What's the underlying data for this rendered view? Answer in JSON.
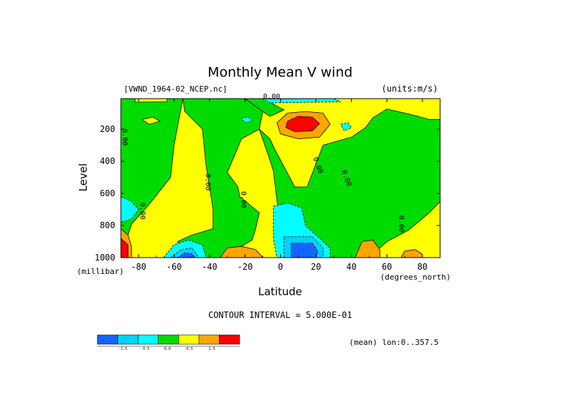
{
  "chart_data": {
    "type": "heatmap",
    "title": "Monthly Mean V wind",
    "dataset_label": "[VWND_1964-02_NCEP.nc]",
    "units_label": "(units:m/s)",
    "xlabel": "Latitude",
    "ylabel": "Level",
    "x_unit_label": "(degrees_north)",
    "y_unit_label": "(millibar)",
    "xlim": [
      -90,
      90
    ],
    "ylim": [
      1000,
      10
    ],
    "x_ticks": [
      -80,
      -60,
      -40,
      -20,
      0,
      20,
      40,
      60,
      80
    ],
    "x_tick_labels": [
      "-80",
      "-60",
      "-40",
      "-20",
      "0",
      "20",
      "40",
      "60",
      "80"
    ],
    "y_ticks": [
      200,
      400,
      600,
      800,
      1000
    ],
    "y_tick_labels": [
      "200",
      "400",
      "600",
      "800",
      "1000"
    ],
    "contour_interval_text": "CONTOUR INTERVAL = 5.000E-01",
    "mean_text": "(mean) lon:0..357.5",
    "contour_labels": [
      "0.00"
    ],
    "legend": {
      "colors": [
        "#1464ff",
        "#00d2ff",
        "#00ffff",
        "#00dc00",
        "#ffff00",
        "#ffa500",
        "#ff0000"
      ],
      "tick_labels": [
        "-1.5",
        "-0.5",
        "0.0",
        "0.5",
        "1.5"
      ]
    },
    "levels": {
      "neg2": "#1464ff",
      "neg1": "#00d2ff",
      "neg05": "#00ffff",
      "zero": "#00dc00",
      "pos": "#ffff00",
      "pos1": "#ffa500",
      "pos2": "#ff0000"
    },
    "regions": [
      {
        "name": "main-positive-field",
        "level": "pos",
        "poly": [
          [
            -90,
            1000
          ],
          [
            -90,
            10
          ],
          [
            90,
            10
          ],
          [
            90,
            1000
          ]
        ]
      },
      {
        "name": "high-lat-south-band",
        "level": "zero",
        "poly": [
          [
            -90,
            10
          ],
          [
            -55,
            10
          ],
          [
            -57,
            120
          ],
          [
            -60,
            300
          ],
          [
            -62,
            500
          ],
          [
            -72,
            640
          ],
          [
            -78,
            720
          ],
          [
            -84,
            790
          ],
          [
            -86,
            860
          ],
          [
            -86,
            1000
          ],
          [
            -90,
            1000
          ]
        ]
      },
      {
        "name": "mid-south-band",
        "level": "zero",
        "poly": [
          [
            -55,
            10
          ],
          [
            -20,
            10
          ],
          [
            -10,
            90
          ],
          [
            -12,
            200
          ],
          [
            -22,
            260
          ],
          [
            -30,
            470
          ],
          [
            -24,
            560
          ],
          [
            -23,
            620
          ],
          [
            -12,
            720
          ],
          [
            -14,
            820
          ],
          [
            -16,
            890
          ],
          [
            -22,
            930
          ],
          [
            -32,
            1000
          ],
          [
            -55,
            1000
          ],
          [
            -58,
            900
          ],
          [
            -50,
            860
          ],
          [
            -38,
            820
          ],
          [
            -38,
            700
          ],
          [
            -42,
            420
          ],
          [
            -44,
            200
          ],
          [
            -54,
            90
          ]
        ]
      },
      {
        "name": "equatorial-band",
        "level": "zero",
        "poly": [
          [
            -12,
            200
          ],
          [
            -6,
            390
          ],
          [
            -4,
            460
          ],
          [
            2,
            1000
          ],
          [
            50,
            1000
          ],
          [
            60,
            900
          ],
          [
            72,
            830
          ],
          [
            84,
            720
          ],
          [
            90,
            650
          ],
          [
            90,
            140
          ],
          [
            84,
            140
          ],
          [
            74,
            110
          ],
          [
            60,
            75
          ],
          [
            52,
            130
          ],
          [
            48,
            190
          ],
          [
            40,
            250
          ],
          [
            24,
            300
          ],
          [
            15,
            560
          ],
          [
            8,
            560
          ],
          [
            -3,
            330
          ],
          [
            -6,
            260
          ]
        ]
      },
      {
        "name": "upper-southern-green",
        "level": "zero",
        "poly": [
          [
            -20,
            10
          ],
          [
            -10,
            10
          ],
          [
            2,
            80
          ],
          [
            -6,
            120
          ],
          [
            -10,
            90
          ]
        ]
      },
      {
        "name": "south-polar-low-cyan",
        "level": "neg05",
        "poly": [
          [
            -90,
            620
          ],
          [
            -84,
            650
          ],
          [
            -80,
            700
          ],
          [
            -84,
            760
          ],
          [
            -90,
            780
          ]
        ]
      },
      {
        "name": "equatorial-low-cyan",
        "level": "neg05",
        "poly": [
          [
            -4,
            680
          ],
          [
            4,
            660
          ],
          [
            12,
            690
          ],
          [
            14,
            800
          ],
          [
            22,
            880
          ],
          [
            28,
            940
          ],
          [
            28,
            1000
          ],
          [
            -2,
            1000
          ],
          [
            -4,
            880
          ]
        ]
      },
      {
        "name": "equatorial-low-cyan2",
        "level": "neg1",
        "poly": [
          [
            2,
            870
          ],
          [
            18,
            870
          ],
          [
            24,
            940
          ],
          [
            24,
            1000
          ],
          [
            2,
            1000
          ]
        ]
      },
      {
        "name": "equatorial-low-blue",
        "level": "neg2",
        "poly": [
          [
            6,
            910
          ],
          [
            18,
            910
          ],
          [
            21,
            960
          ],
          [
            20,
            1000
          ],
          [
            6,
            1000
          ]
        ]
      },
      {
        "name": "south-low-cyan",
        "level": "neg05",
        "poly": [
          [
            -66,
            1000
          ],
          [
            -60,
            920
          ],
          [
            -52,
            890
          ],
          [
            -44,
            920
          ],
          [
            -42,
            1000
          ]
        ]
      },
      {
        "name": "south-low-cyan2",
        "level": "neg1",
        "poly": [
          [
            -62,
            1000
          ],
          [
            -56,
            950
          ],
          [
            -50,
            940
          ],
          [
            -46,
            1000
          ]
        ]
      },
      {
        "name": "south-low-blue",
        "level": "neg2",
        "poly": [
          [
            -58,
            1000
          ],
          [
            -54,
            970
          ],
          [
            -50,
            975
          ],
          [
            -48,
            1000
          ]
        ]
      },
      {
        "name": "jet-orange",
        "level": "pos1",
        "poly": [
          [
            -2,
            160
          ],
          [
            4,
            100
          ],
          [
            14,
            90
          ],
          [
            24,
            100
          ],
          [
            28,
            170
          ],
          [
            22,
            250
          ],
          [
            10,
            260
          ],
          [
            0,
            230
          ]
        ]
      },
      {
        "name": "jet-red",
        "level": "pos2",
        "poly": [
          [
            4,
            150
          ],
          [
            10,
            120
          ],
          [
            18,
            125
          ],
          [
            22,
            165
          ],
          [
            18,
            210
          ],
          [
            8,
            215
          ],
          [
            3,
            190
          ]
        ]
      },
      {
        "name": "south-pole-orange",
        "level": "pos1",
        "poly": [
          [
            -90,
            820
          ],
          [
            -86,
            860
          ],
          [
            -84,
            930
          ],
          [
            -84,
            1000
          ],
          [
            -90,
            1000
          ]
        ]
      },
      {
        "name": "south-pole-red",
        "level": "pos2",
        "poly": [
          [
            -90,
            880
          ],
          [
            -86,
            920
          ],
          [
            -86,
            1000
          ],
          [
            -90,
            1000
          ]
        ]
      },
      {
        "name": "south-mid-orange",
        "level": "pos1",
        "poly": [
          [
            -34,
            1000
          ],
          [
            -30,
            940
          ],
          [
            -22,
            930
          ],
          [
            -14,
            950
          ],
          [
            -10,
            1000
          ]
        ]
      },
      {
        "name": "north-mid-orange",
        "level": "pos1",
        "poly": [
          [
            42,
            1000
          ],
          [
            46,
            900
          ],
          [
            52,
            890
          ],
          [
            56,
            950
          ],
          [
            56,
            1000
          ]
        ]
      },
      {
        "name": "north-high-orange",
        "level": "pos1",
        "poly": [
          [
            68,
            1000
          ],
          [
            70,
            960
          ],
          [
            76,
            950
          ],
          [
            80,
            980
          ],
          [
            80,
            1000
          ]
        ]
      },
      {
        "name": "upper-cyan-1",
        "level": "neg05",
        "poly": [
          [
            -22,
            130
          ],
          [
            -18,
            125
          ],
          [
            -16,
            150
          ],
          [
            -20,
            160
          ]
        ]
      },
      {
        "name": "upper-cyan-2",
        "level": "neg05",
        "poly": [
          [
            34,
            170
          ],
          [
            38,
            160
          ],
          [
            40,
            190
          ],
          [
            36,
            210
          ]
        ]
      },
      {
        "name": "top-cyan",
        "level": "neg05",
        "poly": [
          [
            -10,
            12
          ],
          [
            30,
            10
          ],
          [
            34,
            30
          ],
          [
            -6,
            36
          ]
        ]
      },
      {
        "name": "top-yellow-left",
        "level": "pos",
        "poly": [
          [
            -82,
            10
          ],
          [
            -64,
            10
          ],
          [
            -64,
            30
          ],
          [
            -82,
            32
          ]
        ]
      },
      {
        "name": "south-upper-yellow",
        "level": "pos",
        "poly": [
          [
            -78,
            140
          ],
          [
            -72,
            125
          ],
          [
            -68,
            150
          ],
          [
            -74,
            170
          ]
        ]
      }
    ],
    "label_positions": [
      {
        "lat": -89,
        "lev": 250,
        "rot": 90
      },
      {
        "lat": -42,
        "lev": 530,
        "rot": 90
      },
      {
        "lat": -22,
        "lev": 640,
        "rot": 90
      },
      {
        "lat": -79,
        "lev": 710,
        "rot": 90
      },
      {
        "lat": 20,
        "lev": 430,
        "rot": 70
      },
      {
        "lat": 36,
        "lev": 510,
        "rot": 70
      },
      {
        "lat": 67,
        "lev": 790,
        "rot": 90
      },
      {
        "lat": -5,
        "lev": 10,
        "rot": 0
      }
    ]
  }
}
